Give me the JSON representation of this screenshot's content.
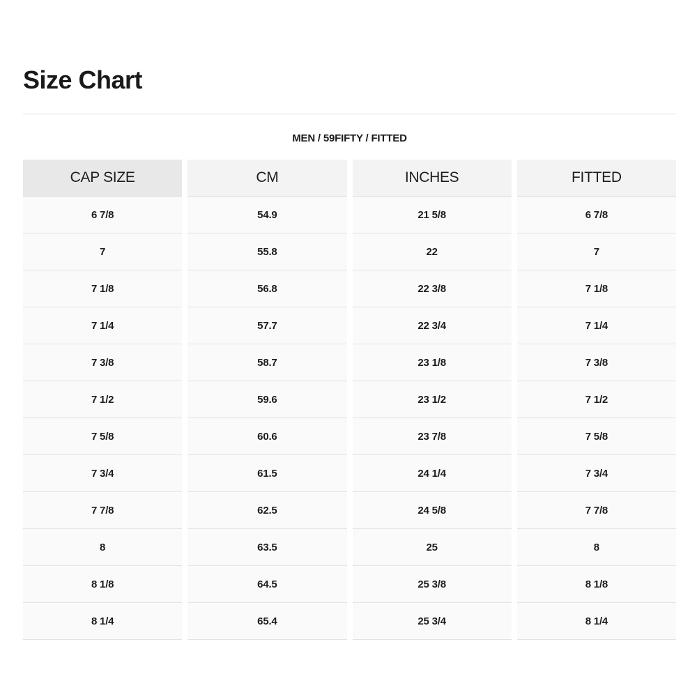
{
  "page": {
    "title": "Size Chart",
    "subtitle": "MEN / 59FIFTY / FITTED"
  },
  "size_chart": {
    "type": "table",
    "headers": [
      "CAP SIZE",
      "CM",
      "INCHES",
      "FITTED"
    ],
    "rows": [
      [
        "6 7/8",
        "54.9",
        "21 5/8",
        "6 7/8"
      ],
      [
        "7",
        "55.8",
        "22",
        "7"
      ],
      [
        "7 1/8",
        "56.8",
        "22 3/8",
        "7 1/8"
      ],
      [
        "7 1/4",
        "57.7",
        "22 3/4",
        "7 1/4"
      ],
      [
        "7 3/8",
        "58.7",
        "23 1/8",
        "7 3/8"
      ],
      [
        "7 1/2",
        "59.6",
        "23 1/2",
        "7 1/2"
      ],
      [
        "7 5/8",
        "60.6",
        "23 7/8",
        "7 5/8"
      ],
      [
        "7 3/4",
        "61.5",
        "24 1/4",
        "7 3/4"
      ],
      [
        "7 7/8",
        "62.5",
        "24 5/8",
        "7 7/8"
      ],
      [
        "8",
        "63.5",
        "25",
        "8"
      ],
      [
        "8 1/8",
        "64.5",
        "25 3/8",
        "8 1/8"
      ],
      [
        "8 1/4",
        "65.4",
        "25 3/4",
        "8 1/4"
      ]
    ]
  },
  "colors": {
    "header_first_bg": "#e8e8e8",
    "header_bg": "#f3f3f3",
    "cell_bg": "#fafafa",
    "row_border": "#e3e3e3",
    "divider": "#e2e2e2",
    "text": "#1d1d1d"
  }
}
